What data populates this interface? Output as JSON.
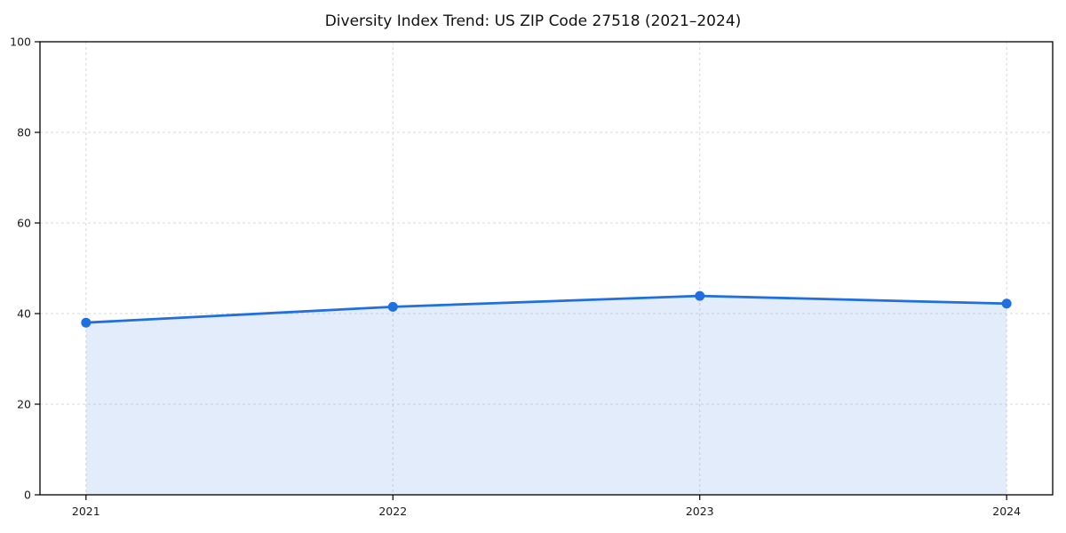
{
  "figure": {
    "background": "#ffffff"
  },
  "chart_data": {
    "type": "area",
    "title": "Diversity Index Trend: US ZIP Code 27518 (2021–2024)",
    "categories": [
      "2021",
      "2022",
      "2023",
      "2024"
    ],
    "values": [
      38,
      41.5,
      43.9,
      42.2
    ],
    "xlabel": "",
    "ylabel": "",
    "ylim": [
      0,
      100
    ],
    "yticks": [
      0,
      20,
      40,
      60,
      80,
      100
    ],
    "grid": true,
    "legend": "none",
    "colors": {
      "line": "#1f6fe0",
      "marker": "#1f6fe0",
      "area_fill": "rgba(31, 111, 224, 0.13)",
      "gridline": "#d9d9d9",
      "spine": "#000000",
      "tick_label": "#1a1a1a",
      "title": "#111111"
    }
  }
}
